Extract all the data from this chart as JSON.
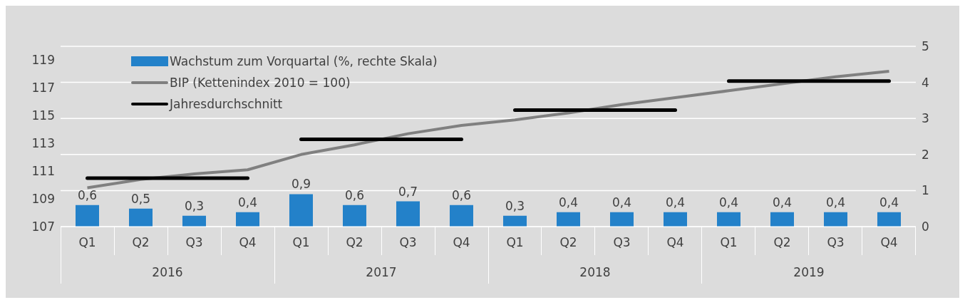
{
  "chart_data": {
    "type": "bar",
    "categories": [
      "Q1",
      "Q2",
      "Q3",
      "Q4",
      "Q1",
      "Q2",
      "Q3",
      "Q4",
      "Q1",
      "Q2",
      "Q3",
      "Q4",
      "Q1",
      "Q2",
      "Q3",
      "Q4"
    ],
    "annotations": [
      "2016",
      "2017",
      "2018",
      "2019"
    ],
    "series": [
      {
        "name": "Wachstum zum Vorquartal (%, rechte Skala)",
        "axis": "y2",
        "color": "#2381c9",
        "values": [
          0.6,
          0.5,
          0.3,
          0.4,
          0.9,
          0.6,
          0.7,
          0.6,
          0.3,
          0.4,
          0.4,
          0.4,
          0.4,
          0.4,
          0.4,
          0.4
        ],
        "value_labels": [
          "0,6",
          "0,5",
          "0,3",
          "0,4",
          "0,9",
          "0,6",
          "0,7",
          "0,6",
          "0,3",
          "0,4",
          "0,4",
          "0,4",
          "0,4",
          "0,4",
          "0,4",
          "0,4"
        ]
      },
      {
        "name": "BIP (Kettenindex 2010 = 100)",
        "type": "line",
        "color": "#808080",
        "values": [
          109.8,
          110.4,
          110.8,
          111.1,
          112.2,
          112.9,
          113.7,
          114.3,
          114.7,
          115.2,
          115.8,
          116.3,
          116.8,
          117.3,
          117.8,
          118.2
        ]
      },
      {
        "name": "Jahresdurchschnitt",
        "type": "step",
        "color": "#000000",
        "values": [
          110.5,
          110.5,
          110.5,
          110.5,
          113.3,
          113.3,
          113.3,
          113.3,
          115.4,
          115.4,
          115.4,
          115.4,
          117.5,
          117.5,
          117.5,
          117.5
        ]
      }
    ],
    "ylim": [
      107,
      120
    ],
    "yticks": [
      107,
      109,
      111,
      113,
      115,
      117,
      119
    ],
    "y2lim": [
      0,
      5
    ],
    "y2ticks": [
      0,
      1,
      2,
      3,
      4,
      5
    ],
    "grid": "y",
    "legend": "top left",
    "marker": "none",
    "line_style": "solid"
  }
}
